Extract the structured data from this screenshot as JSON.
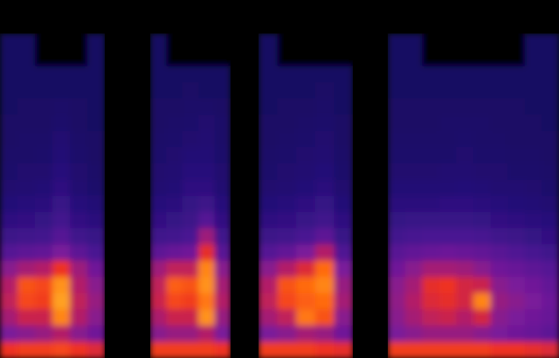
{
  "chart_data": [
    {
      "type": "heatmap",
      "tick_labels": false,
      "zlim": [
        0,
        100
      ],
      "cells": [
        [
          22,
          22,
          0,
          0,
          0,
          22
        ],
        [
          22,
          22,
          0,
          0,
          0,
          22
        ],
        [
          22,
          22,
          22,
          22,
          22,
          22
        ],
        [
          22,
          22,
          22,
          22,
          22,
          22
        ],
        [
          22,
          23,
          23,
          24,
          23,
          22
        ],
        [
          23,
          23,
          23,
          25,
          23,
          22
        ],
        [
          23,
          24,
          24,
          27,
          24,
          23
        ],
        [
          24,
          24,
          25,
          28,
          25,
          23
        ],
        [
          25,
          26,
          26,
          30,
          26,
          24
        ],
        [
          26,
          27,
          28,
          32,
          27,
          25
        ],
        [
          29,
          30,
          31,
          35,
          30,
          28
        ],
        [
          32,
          33,
          34,
          38,
          33,
          31
        ],
        [
          36,
          37,
          38,
          42,
          37,
          35
        ],
        [
          42,
          44,
          45,
          50,
          44,
          40
        ],
        [
          52,
          56,
          58,
          70,
          55,
          48
        ],
        [
          58,
          76,
          74,
          86,
          58,
          52
        ],
        [
          60,
          74,
          72,
          88,
          60,
          54
        ],
        [
          56,
          62,
          62,
          84,
          58,
          52
        ],
        [
          50,
          52,
          54,
          58,
          52,
          48
        ],
        [
          70,
          72,
          72,
          74,
          70,
          66
        ]
      ]
    },
    {
      "type": "heatmap",
      "tick_labels": false,
      "zlim": [
        0,
        100
      ],
      "cells": [
        [
          22,
          0,
          0,
          0,
          0
        ],
        [
          22,
          0,
          0,
          0,
          0
        ],
        [
          22,
          22,
          22,
          22,
          22
        ],
        [
          22,
          22,
          23,
          22,
          22
        ],
        [
          23,
          23,
          24,
          24,
          23
        ],
        [
          23,
          24,
          25,
          26,
          24
        ],
        [
          24,
          25,
          26,
          27,
          24
        ],
        [
          25,
          26,
          28,
          28,
          25
        ],
        [
          26,
          27,
          30,
          30,
          26
        ],
        [
          27,
          28,
          32,
          32,
          27
        ],
        [
          30,
          31,
          34,
          36,
          30
        ],
        [
          33,
          34,
          36,
          42,
          33
        ],
        [
          37,
          38,
          40,
          55,
          37
        ],
        [
          44,
          46,
          48,
          68,
          43
        ],
        [
          55,
          60,
          60,
          84,
          52
        ],
        [
          60,
          78,
          76,
          86,
          56
        ],
        [
          62,
          74,
          72,
          82,
          58
        ],
        [
          57,
          62,
          62,
          86,
          54
        ],
        [
          52,
          54,
          54,
          58,
          50
        ],
        [
          72,
          72,
          72,
          72,
          70
        ]
      ]
    },
    {
      "type": "heatmap",
      "tick_labels": false,
      "zlim": [
        0,
        100
      ],
      "cells": [
        [
          22,
          0,
          0,
          0,
          0
        ],
        [
          22,
          0,
          0,
          0,
          0
        ],
        [
          22,
          22,
          22,
          22,
          22
        ],
        [
          22,
          22,
          22,
          23,
          22
        ],
        [
          22,
          23,
          23,
          24,
          22
        ],
        [
          23,
          23,
          24,
          25,
          23
        ],
        [
          23,
          24,
          25,
          26,
          23
        ],
        [
          24,
          25,
          26,
          27,
          24
        ],
        [
          25,
          26,
          27,
          29,
          25
        ],
        [
          26,
          27,
          29,
          31,
          26
        ],
        [
          29,
          30,
          32,
          34,
          29
        ],
        [
          32,
          33,
          35,
          37,
          32
        ],
        [
          36,
          37,
          40,
          44,
          35
        ],
        [
          42,
          45,
          50,
          58,
          41
        ],
        [
          52,
          58,
          66,
          80,
          50
        ],
        [
          58,
          76,
          80,
          84,
          54
        ],
        [
          60,
          74,
          78,
          80,
          56
        ],
        [
          56,
          60,
          82,
          76,
          52
        ],
        [
          50,
          52,
          56,
          54,
          48
        ],
        [
          72,
          72,
          72,
          70,
          68
        ]
      ]
    },
    {
      "type": "heatmap",
      "tick_labels": false,
      "zlim": [
        0,
        100
      ],
      "cells": [
        [
          22,
          22,
          0,
          0,
          0,
          0,
          0,
          0,
          22,
          22
        ],
        [
          22,
          22,
          0,
          0,
          0,
          0,
          0,
          0,
          22,
          22
        ],
        [
          22,
          22,
          22,
          22,
          22,
          22,
          22,
          22,
          22,
          22
        ],
        [
          22,
          22,
          22,
          22,
          22,
          22,
          22,
          22,
          22,
          22
        ],
        [
          23,
          23,
          23,
          23,
          23,
          23,
          23,
          23,
          22,
          22
        ],
        [
          23,
          23,
          23,
          24,
          24,
          24,
          23,
          23,
          23,
          22
        ],
        [
          24,
          24,
          24,
          24,
          25,
          24,
          24,
          23,
          23,
          23
        ],
        [
          25,
          25,
          25,
          25,
          26,
          25,
          25,
          24,
          24,
          23
        ],
        [
          26,
          26,
          26,
          27,
          27,
          26,
          26,
          25,
          25,
          24
        ],
        [
          28,
          28,
          28,
          28,
          29,
          28,
          27,
          27,
          26,
          25
        ],
        [
          31,
          31,
          31,
          32,
          32,
          31,
          30,
          29,
          28,
          27
        ],
        [
          34,
          35,
          35,
          35,
          35,
          34,
          33,
          32,
          31,
          30
        ],
        [
          38,
          39,
          40,
          40,
          40,
          39,
          37,
          36,
          34,
          33
        ],
        [
          43,
          45,
          46,
          47,
          46,
          45,
          43,
          41,
          39,
          37
        ],
        [
          48,
          52,
          56,
          56,
          55,
          52,
          48,
          46,
          44,
          42
        ],
        [
          52,
          56,
          68,
          70,
          64,
          62,
          52,
          50,
          48,
          45
        ],
        [
          53,
          58,
          66,
          68,
          64,
          84,
          54,
          52,
          50,
          47
        ],
        [
          52,
          56,
          60,
          62,
          58,
          64,
          52,
          50,
          48,
          46
        ],
        [
          50,
          52,
          54,
          54,
          54,
          52,
          50,
          48,
          46,
          44
        ],
        [
          72,
          72,
          72,
          72,
          72,
          72,
          70,
          70,
          68,
          66
        ]
      ]
    }
  ]
}
